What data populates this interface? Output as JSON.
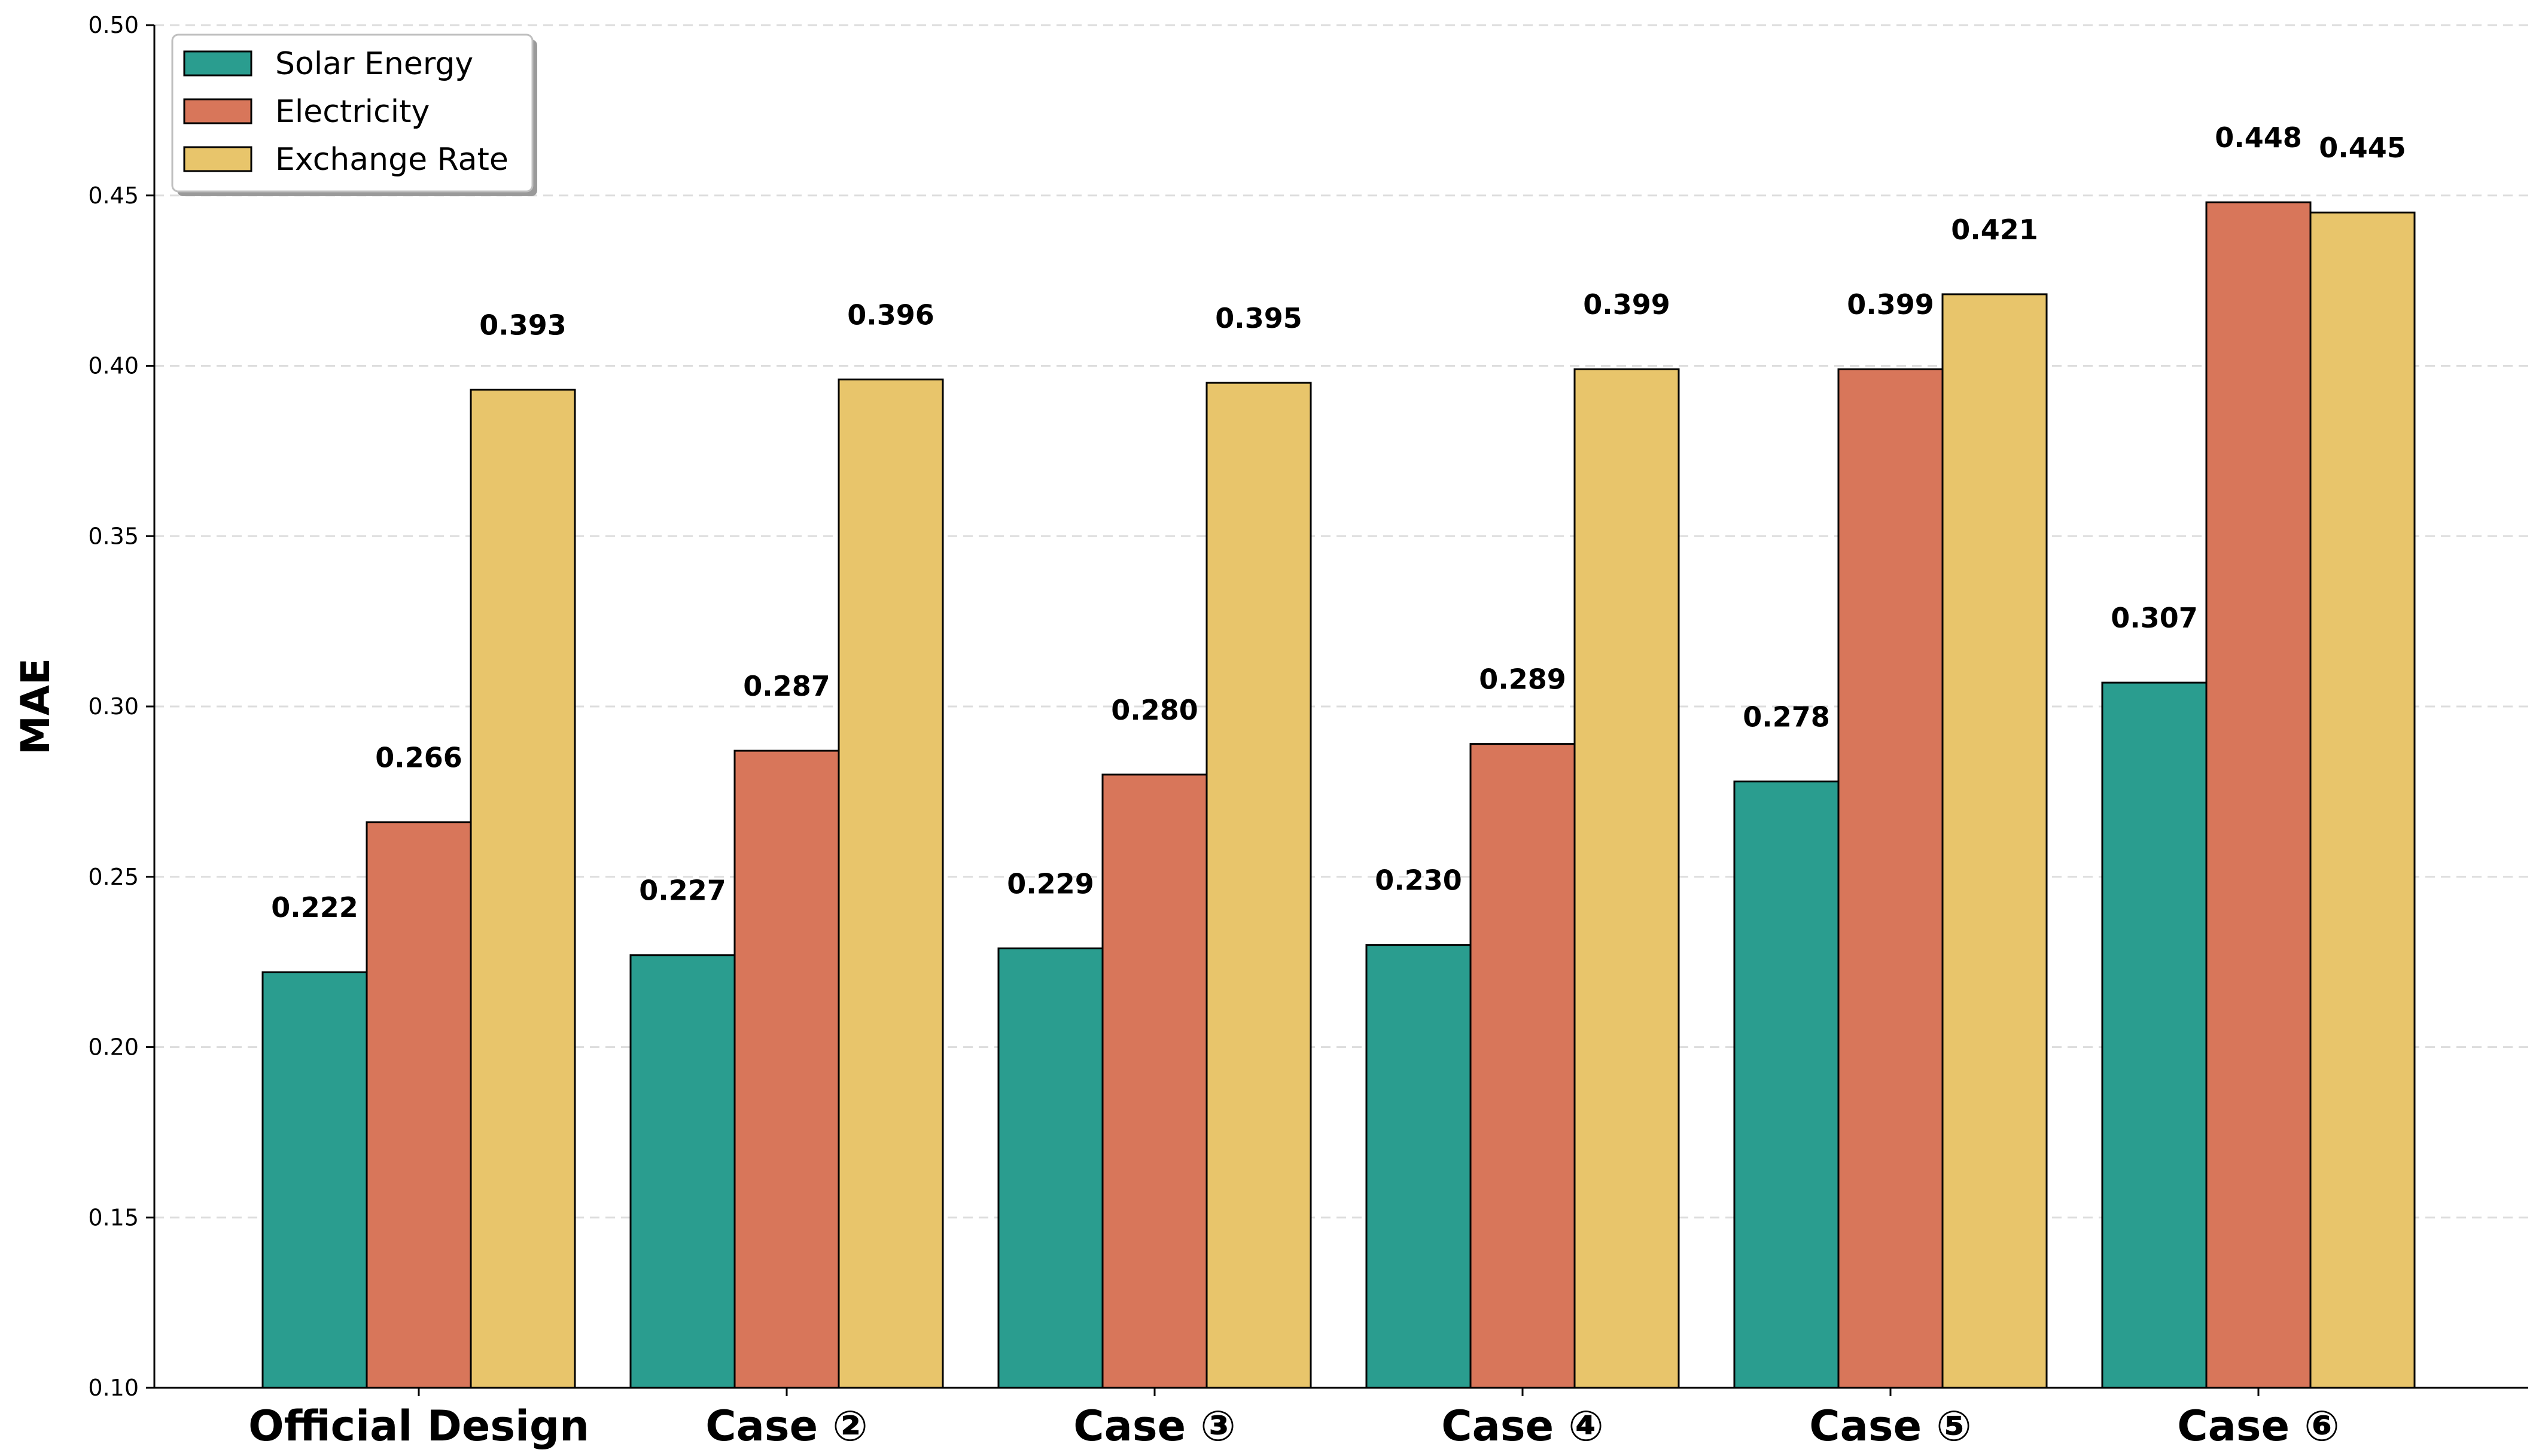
{
  "chart_data": {
    "type": "bar",
    "title": "",
    "xlabel": "",
    "ylabel": "MAE",
    "ylim": [
      0.1,
      0.5
    ],
    "yticks": [
      "0.10",
      "0.15",
      "0.20",
      "0.25",
      "0.30",
      "0.35",
      "0.40",
      "0.45",
      "0.50"
    ],
    "grid": "horizontal dashed",
    "legend_position": "top-left",
    "categories": [
      "Official Design",
      "Case ②",
      "Case ③",
      "Case ④",
      "Case ⑤",
      "Case ⑥"
    ],
    "series": [
      {
        "name": "Solar Energy",
        "color": "#2a9d8f",
        "values": [
          0.222,
          0.227,
          0.229,
          0.23,
          0.278,
          0.307
        ],
        "labels": [
          "0.222",
          "0.227",
          "0.229",
          "0.230",
          "0.278",
          "0.307"
        ]
      },
      {
        "name": "Electricity",
        "color": "#d8765a",
        "values": [
          0.266,
          0.287,
          0.28,
          0.289,
          0.399,
          0.448
        ],
        "labels": [
          "0.266",
          "0.287",
          "0.280",
          "0.289",
          "0.399",
          "0.448"
        ]
      },
      {
        "name": "Exchange Rate",
        "color": "#e8c56b",
        "values": [
          0.393,
          0.396,
          0.395,
          0.399,
          0.421,
          0.445
        ],
        "labels": [
          "0.393",
          "0.396",
          "0.395",
          "0.399",
          "0.421",
          "0.445"
        ]
      }
    ]
  }
}
